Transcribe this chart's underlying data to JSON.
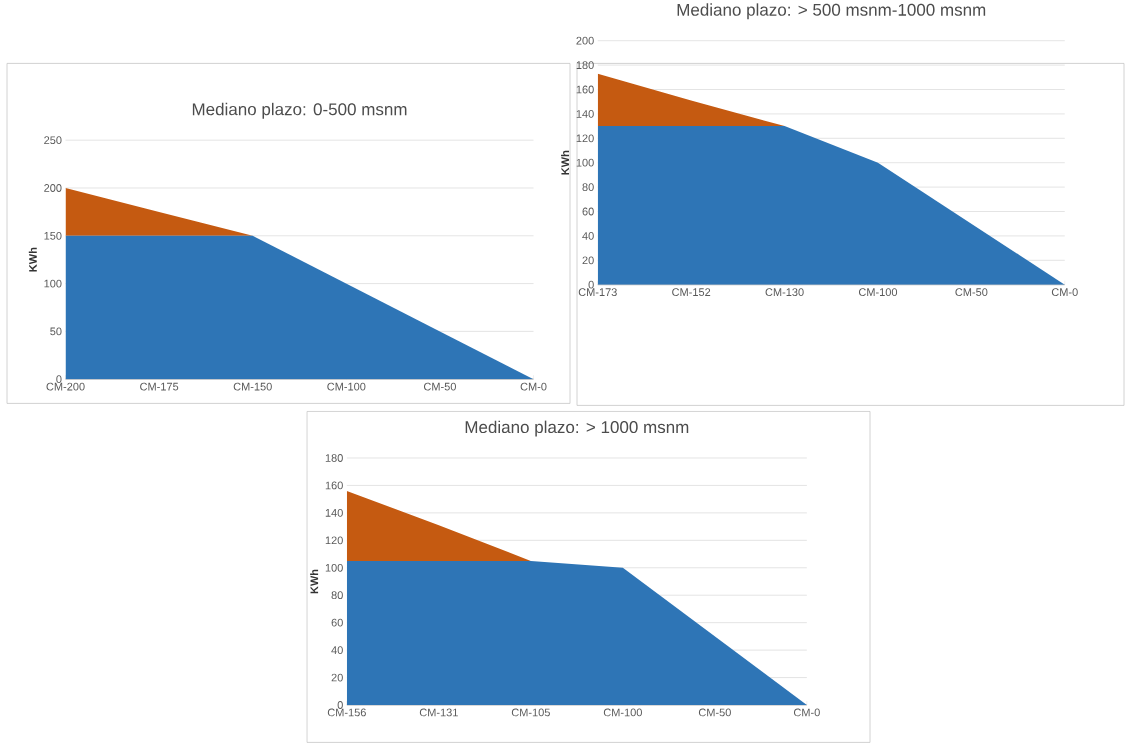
{
  "chart_data": [
    {
      "type": "area",
      "title": "Mediano plazo: 0-500 msnm",
      "ylabel": "KWh",
      "categories": [
        "CM-200",
        "CM-175",
        "CM-150",
        "CM-100",
        "CM-50",
        "CM-0"
      ],
      "stacked": true,
      "grid": "y",
      "ylim": [
        0,
        250
      ],
      "yticks": [
        0,
        50,
        100,
        150,
        200,
        250
      ],
      "series": [
        {
          "color": "#2e75b6",
          "values": [
            150,
            150,
            150,
            100,
            50,
            0
          ]
        },
        {
          "color": "#c55a11",
          "values": [
            50,
            25,
            0,
            0,
            0,
            0
          ]
        }
      ]
    },
    {
      "type": "area",
      "title": "Mediano plazo: > 500 msnm-1000 msnm",
      "ylabel": "KWh",
      "categories": [
        "CM-173",
        "CM-152",
        "CM-130",
        "CM-100",
        "CM-50",
        "CM-0"
      ],
      "stacked": true,
      "grid": "y",
      "ylim": [
        0,
        200
      ],
      "yticks": [
        0,
        20,
        40,
        60,
        80,
        100,
        120,
        140,
        160,
        180,
        200
      ],
      "series": [
        {
          "color": "#2e75b6",
          "values": [
            130,
            130,
            130,
            100,
            50,
            0
          ]
        },
        {
          "color": "#c55a11",
          "values": [
            43,
            21,
            0,
            0,
            0,
            0
          ]
        }
      ]
    },
    {
      "type": "area",
      "title": "Mediano plazo: > 1000 msnm",
      "ylabel": "KWh",
      "categories": [
        "CM-156",
        "CM-131",
        "CM-105",
        "CM-100",
        "CM-50",
        "CM-0"
      ],
      "stacked": true,
      "grid": "y",
      "ylim": [
        0,
        180
      ],
      "yticks": [
        0,
        20,
        40,
        60,
        80,
        100,
        120,
        140,
        160,
        180
      ],
      "series": [
        {
          "color": "#2e75b6",
          "values": [
            105,
            105,
            105,
            100,
            50,
            0
          ]
        },
        {
          "color": "#c55a11",
          "values": [
            51,
            26,
            0,
            0,
            0,
            0
          ]
        }
      ]
    }
  ]
}
